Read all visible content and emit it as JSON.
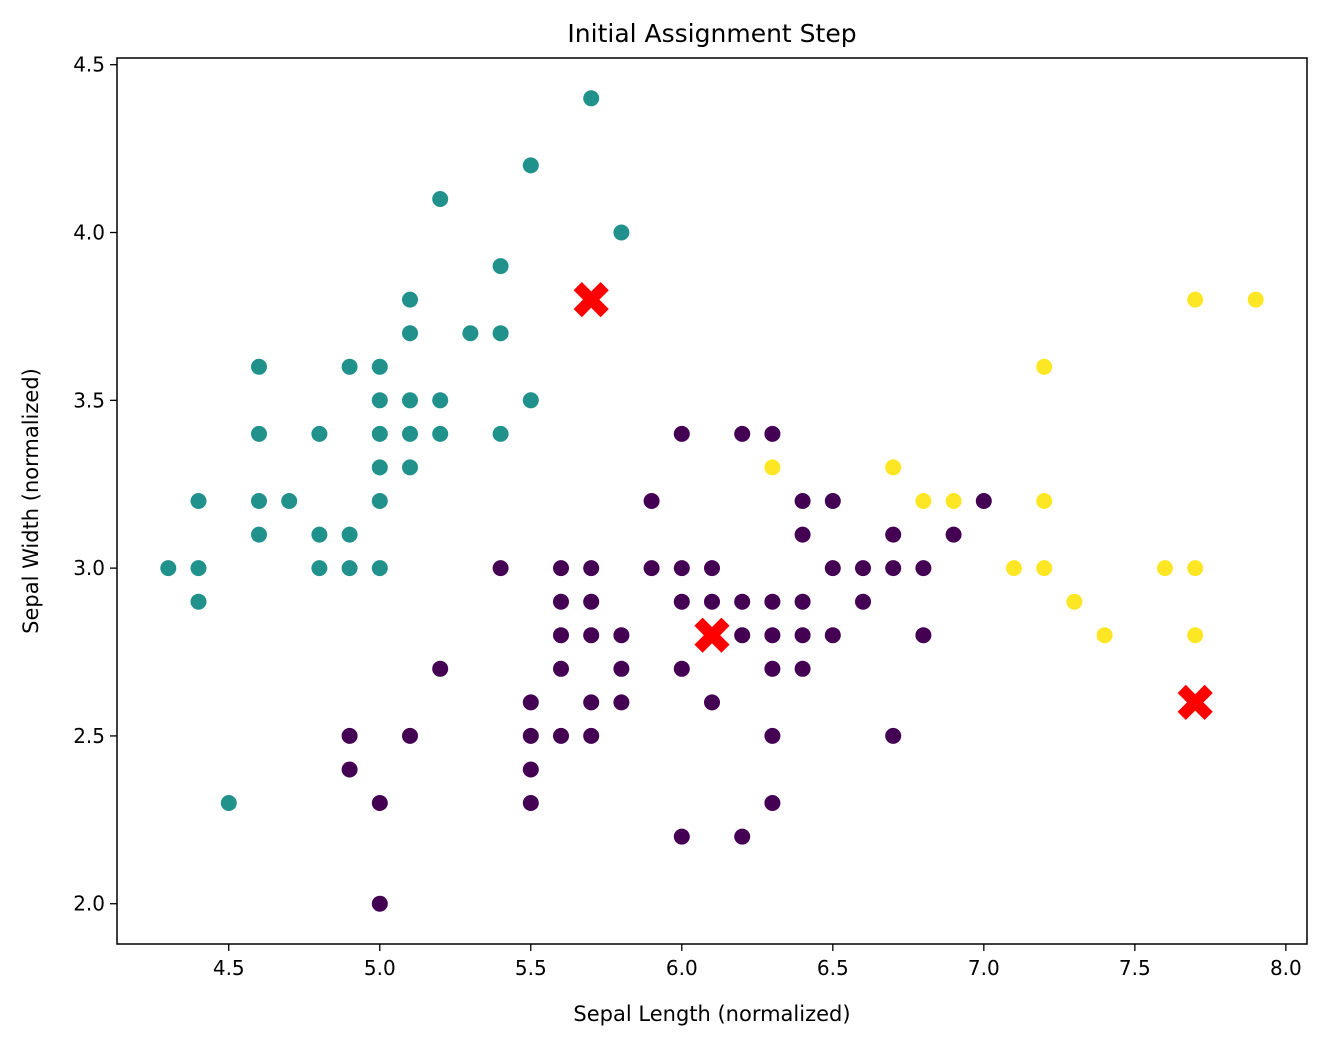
{
  "chart_data": {
    "type": "scatter",
    "title": "Initial Assignment Step",
    "xlabel": "Sepal Length (normalized)",
    "ylabel": "Sepal Width (normalized)",
    "xlim": [
      4.13,
      8.07
    ],
    "ylim": [
      1.88,
      4.52
    ],
    "xticks": [
      "4.5",
      "5.0",
      "5.5",
      "6.0",
      "6.5",
      "7.0",
      "7.5",
      "8.0"
    ],
    "yticks": [
      "2.0",
      "2.5",
      "3.0",
      "3.5",
      "4.0",
      "4.5"
    ],
    "grid": false,
    "colors": {
      "cluster_0": "#440154",
      "cluster_1": "#21918c",
      "cluster_2": "#fde725",
      "centroid": "#ff0000"
    },
    "series": [
      {
        "cluster": 1,
        "points": [
          [
            5.7,
            4.4
          ],
          [
            5.5,
            4.2
          ],
          [
            5.2,
            4.1
          ],
          [
            5.8,
            4.0
          ],
          [
            5.4,
            3.9
          ],
          [
            5.1,
            3.8
          ],
          [
            5.1,
            3.7
          ],
          [
            5.3,
            3.7
          ],
          [
            5.4,
            3.7
          ],
          [
            4.6,
            3.6
          ],
          [
            4.9,
            3.6
          ],
          [
            5.0,
            3.6
          ],
          [
            5.0,
            3.5
          ],
          [
            5.1,
            3.5
          ],
          [
            5.2,
            3.5
          ],
          [
            5.5,
            3.5
          ],
          [
            4.6,
            3.4
          ],
          [
            4.8,
            3.4
          ],
          [
            5.0,
            3.4
          ],
          [
            5.1,
            3.4
          ],
          [
            5.2,
            3.4
          ],
          [
            5.4,
            3.4
          ],
          [
            5.0,
            3.3
          ],
          [
            5.1,
            3.3
          ],
          [
            4.4,
            3.2
          ],
          [
            4.6,
            3.2
          ],
          [
            4.7,
            3.2
          ],
          [
            5.0,
            3.2
          ],
          [
            4.6,
            3.1
          ],
          [
            4.8,
            3.1
          ],
          [
            4.9,
            3.1
          ],
          [
            4.3,
            3.0
          ],
          [
            4.4,
            3.0
          ],
          [
            4.8,
            3.0
          ],
          [
            4.9,
            3.0
          ],
          [
            5.0,
            3.0
          ],
          [
            4.4,
            2.9
          ],
          [
            4.5,
            2.3
          ]
        ]
      },
      {
        "cluster": 0,
        "points": [
          [
            6.0,
            3.4
          ],
          [
            6.2,
            3.4
          ],
          [
            6.3,
            3.4
          ],
          [
            5.9,
            3.2
          ],
          [
            6.4,
            3.2
          ],
          [
            6.5,
            3.2
          ],
          [
            7.0,
            3.2
          ],
          [
            6.4,
            3.1
          ],
          [
            6.7,
            3.1
          ],
          [
            6.9,
            3.1
          ],
          [
            5.4,
            3.0
          ],
          [
            5.6,
            3.0
          ],
          [
            5.7,
            3.0
          ],
          [
            5.9,
            3.0
          ],
          [
            6.0,
            3.0
          ],
          [
            6.1,
            3.0
          ],
          [
            6.5,
            3.0
          ],
          [
            6.6,
            3.0
          ],
          [
            6.7,
            3.0
          ],
          [
            6.8,
            3.0
          ],
          [
            5.6,
            2.9
          ],
          [
            5.7,
            2.9
          ],
          [
            6.0,
            2.9
          ],
          [
            6.1,
            2.9
          ],
          [
            6.2,
            2.9
          ],
          [
            6.3,
            2.9
          ],
          [
            6.4,
            2.9
          ],
          [
            6.6,
            2.9
          ],
          [
            5.6,
            2.8
          ],
          [
            5.7,
            2.8
          ],
          [
            5.8,
            2.8
          ],
          [
            6.1,
            2.8
          ],
          [
            6.2,
            2.8
          ],
          [
            6.3,
            2.8
          ],
          [
            6.4,
            2.8
          ],
          [
            6.5,
            2.8
          ],
          [
            6.8,
            2.8
          ],
          [
            5.2,
            2.7
          ],
          [
            5.6,
            2.7
          ],
          [
            5.8,
            2.7
          ],
          [
            6.0,
            2.7
          ],
          [
            6.3,
            2.7
          ],
          [
            6.4,
            2.7
          ],
          [
            5.5,
            2.6
          ],
          [
            5.7,
            2.6
          ],
          [
            5.8,
            2.6
          ],
          [
            6.1,
            2.6
          ],
          [
            4.9,
            2.5
          ],
          [
            5.1,
            2.5
          ],
          [
            5.5,
            2.5
          ],
          [
            5.6,
            2.5
          ],
          [
            5.7,
            2.5
          ],
          [
            6.3,
            2.5
          ],
          [
            6.7,
            2.5
          ],
          [
            4.9,
            2.4
          ],
          [
            5.5,
            2.4
          ],
          [
            5.0,
            2.3
          ],
          [
            5.5,
            2.3
          ],
          [
            6.3,
            2.3
          ],
          [
            6.0,
            2.2
          ],
          [
            6.2,
            2.2
          ],
          [
            5.0,
            2.0
          ]
        ]
      },
      {
        "cluster": 2,
        "points": [
          [
            7.7,
            3.8
          ],
          [
            7.9,
            3.8
          ],
          [
            7.2,
            3.6
          ],
          [
            6.3,
            3.3
          ],
          [
            6.7,
            3.3
          ],
          [
            6.8,
            3.2
          ],
          [
            6.9,
            3.2
          ],
          [
            7.2,
            3.2
          ],
          [
            7.1,
            3.0
          ],
          [
            7.2,
            3.0
          ],
          [
            7.6,
            3.0
          ],
          [
            7.7,
            3.0
          ],
          [
            7.3,
            2.9
          ],
          [
            7.4,
            2.8
          ],
          [
            7.7,
            2.8
          ]
        ]
      }
    ],
    "centroids": [
      [
        5.7,
        3.8
      ],
      [
        6.1,
        2.8
      ],
      [
        7.7,
        2.6
      ]
    ]
  }
}
